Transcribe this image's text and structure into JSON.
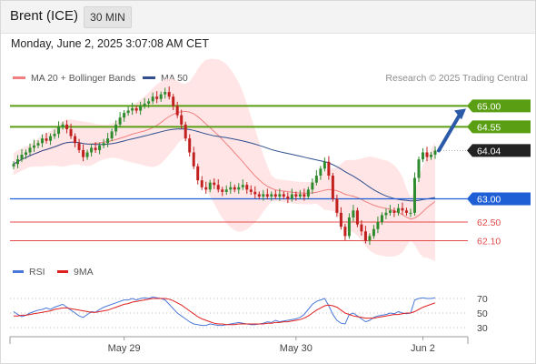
{
  "header": {
    "title": "Brent (ICE)",
    "timeframe": "30 MIN"
  },
  "datetime": "Monday, June 2, 2025 3:07:08 AM CET",
  "legend": {
    "bollinger_label": "MA 20 + Bollinger Bands",
    "ma50_label": "MA 50",
    "credit": "Research © 2025 Trading Central"
  },
  "rsi_legend": {
    "rsi_label": "RSI",
    "ma_label": "9MA"
  },
  "colors": {
    "up": "#2e8b2e",
    "down": "#c21f1f",
    "ma20": "#f08080",
    "ma50": "#2f4f8f",
    "band_fill": "#ffe0e0",
    "resistance": "#5a9e14",
    "current": "#222222",
    "pivot": "#1f5fd6",
    "support": "#e44b4b",
    "rsi": "#4a78d8",
    "rsi_ma": "#e02020"
  },
  "chart_data": {
    "type": "candlestick",
    "x_labels": [
      "May 29",
      "May 30",
      "Jun 2"
    ],
    "y_levels": [
      {
        "value": 65.0,
        "label": "65.00",
        "kind": "resistance"
      },
      {
        "value": 64.55,
        "label": "64.55",
        "kind": "resistance"
      },
      {
        "value": 64.04,
        "label": "64.04",
        "kind": "current"
      },
      {
        "value": 63.0,
        "label": "63.00",
        "kind": "pivot"
      },
      {
        "value": 62.5,
        "label": "62.50",
        "kind": "support"
      },
      {
        "value": 62.1,
        "label": "62.10",
        "kind": "support"
      }
    ],
    "price_ylim": [
      61.6,
      65.4
    ],
    "close": [
      63.75,
      63.85,
      63.95,
      64.0,
      64.1,
      64.15,
      64.2,
      64.3,
      64.25,
      64.35,
      64.4,
      64.55,
      64.6,
      64.5,
      64.35,
      64.2,
      64.05,
      63.9,
      64.0,
      64.1,
      64.05,
      64.15,
      64.2,
      64.3,
      64.45,
      64.6,
      64.75,
      64.85,
      64.9,
      64.95,
      64.9,
      65.0,
      65.05,
      65.1,
      65.2,
      65.15,
      65.25,
      65.3,
      65.2,
      65.0,
      64.8,
      64.6,
      64.3,
      64.0,
      63.7,
      63.4,
      63.25,
      63.2,
      63.35,
      63.3,
      63.2,
      63.15,
      63.2,
      63.25,
      63.2,
      63.25,
      63.3,
      63.2,
      63.15,
      63.1,
      63.05,
      63.1,
      63.05,
      63.1,
      63.05,
      63.1,
      63.05,
      63.0,
      63.1,
      63.05,
      63.1,
      63.05,
      63.2,
      63.35,
      63.5,
      63.65,
      63.8,
      63.5,
      63.0,
      62.7,
      62.4,
      62.2,
      62.6,
      62.75,
      62.45,
      62.3,
      62.1,
      62.2,
      62.35,
      62.5,
      62.65,
      62.7,
      62.75,
      62.7,
      62.8,
      62.75,
      62.7,
      62.7,
      63.45,
      63.85,
      64.0,
      63.9,
      63.95,
      64.04
    ],
    "rsi": [
      52,
      48,
      45,
      47,
      50,
      52,
      54,
      55,
      57,
      55,
      58,
      60,
      62,
      58,
      54,
      50,
      46,
      44,
      48,
      52,
      51,
      55,
      58,
      60,
      62,
      64,
      66,
      68,
      68,
      70,
      68,
      70,
      71,
      70,
      72,
      71,
      70,
      68,
      62,
      56,
      50,
      46,
      42,
      38,
      35,
      34,
      33,
      33,
      35,
      34,
      33,
      33,
      34,
      35,
      36,
      37,
      36,
      35,
      34,
      34,
      35,
      36,
      38,
      37,
      40,
      38,
      39,
      40,
      41,
      42,
      44,
      48,
      55,
      62,
      66,
      68,
      70,
      60,
      48,
      40,
      36,
      35,
      48,
      50,
      46,
      42,
      38,
      40,
      44,
      46,
      47,
      48,
      50,
      49,
      52,
      50,
      49,
      50,
      68,
      70,
      71,
      70,
      70,
      71
    ],
    "rsi_ma": [
      46,
      46,
      47,
      47,
      48,
      49,
      50,
      51,
      52,
      53,
      55,
      56,
      57,
      57,
      56,
      55,
      54,
      53,
      52,
      51,
      51,
      52,
      53,
      54,
      56,
      58,
      60,
      62,
      63,
      65,
      66,
      67,
      68,
      69,
      70,
      70,
      70,
      70,
      69,
      67,
      64,
      61,
      57,
      53,
      49,
      45,
      42,
      40,
      38,
      36,
      35,
      35,
      34,
      34,
      34,
      35,
      35,
      35,
      35,
      35,
      35,
      35,
      36,
      36,
      37,
      37,
      38,
      38,
      39,
      40,
      41,
      43,
      46,
      50,
      54,
      57,
      60,
      61,
      60,
      58,
      54,
      50,
      48,
      46,
      45,
      44,
      43,
      43,
      43,
      44,
      45,
      46,
      47,
      48,
      48,
      49,
      50,
      50,
      52,
      55,
      58,
      60,
      62,
      64
    ],
    "rsi_levels": [
      70,
      50,
      30
    ],
    "rsi_ylim": [
      20,
      80
    ]
  }
}
